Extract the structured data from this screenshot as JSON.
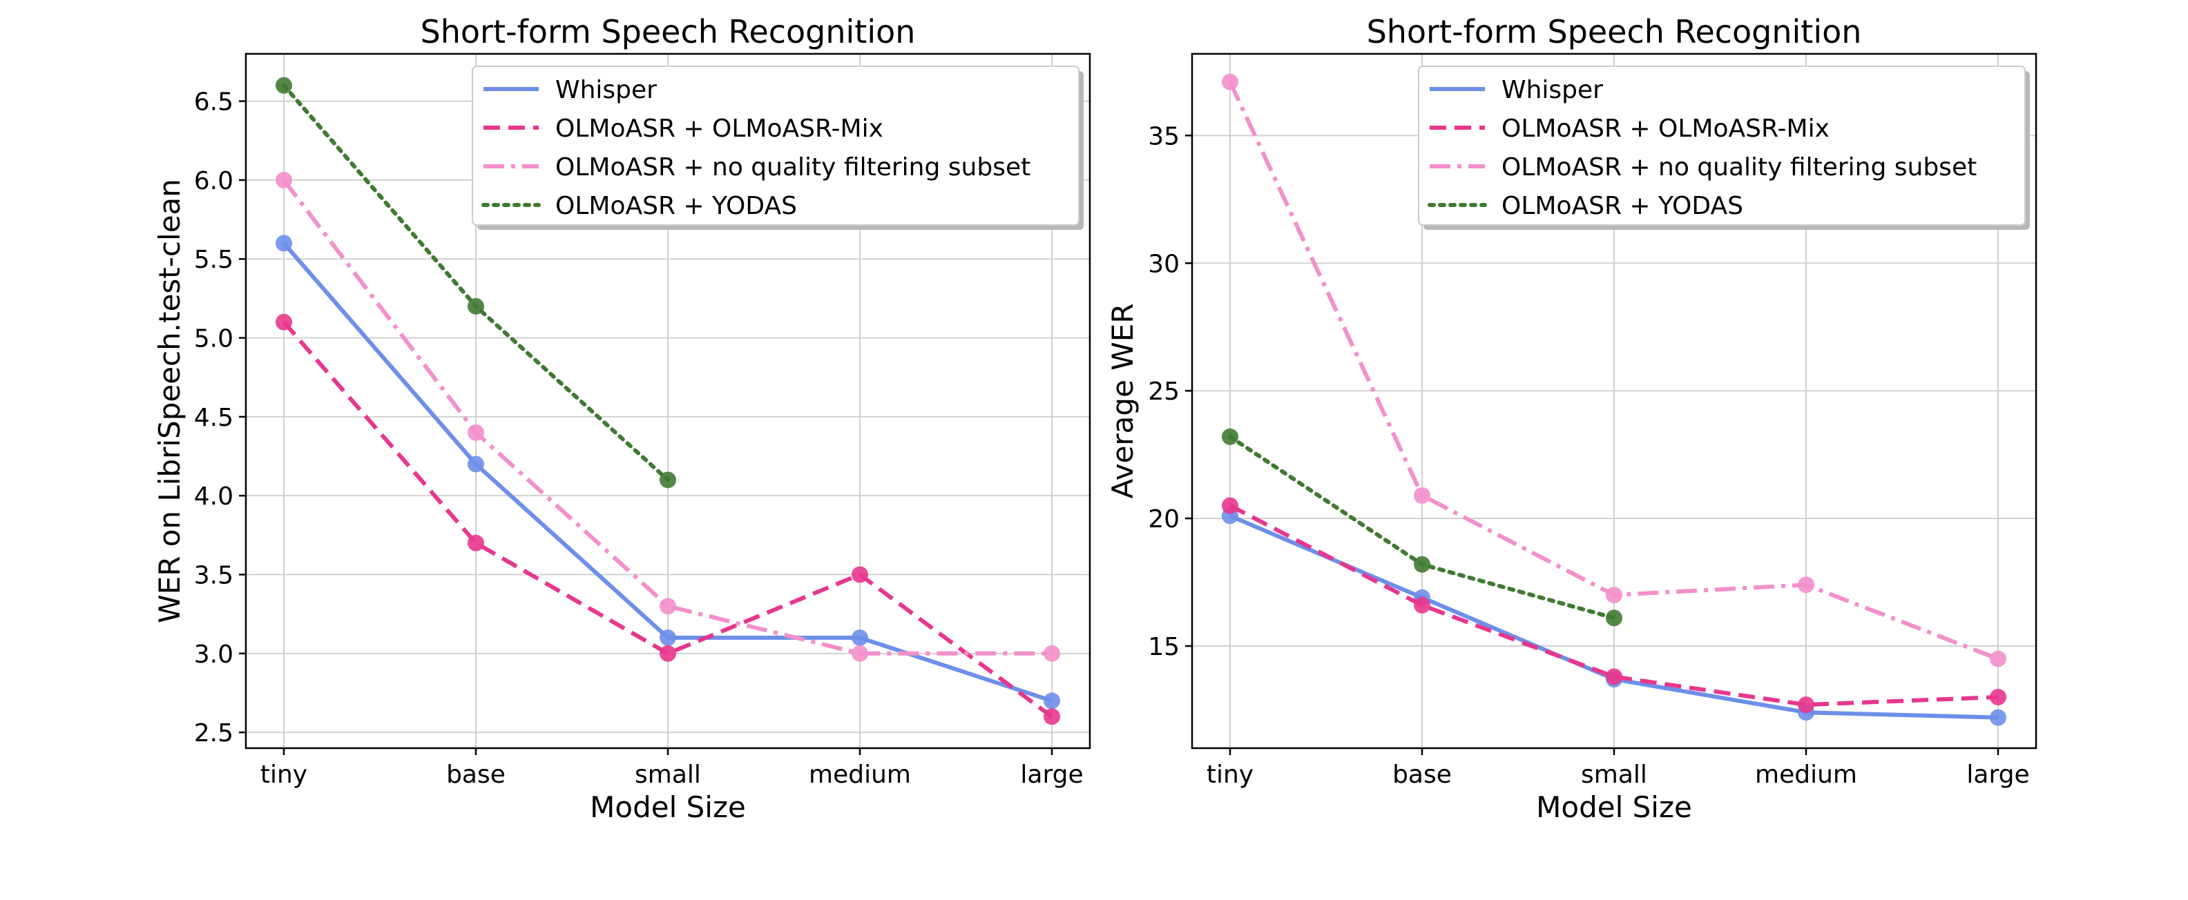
{
  "chart_data": [
    {
      "type": "line",
      "title": "Short-form Speech Recognition",
      "xlabel": "Model Size",
      "ylabel": "WER on LibriSpeech.test-clean",
      "categories": [
        "tiny",
        "base",
        "small",
        "medium",
        "large"
      ],
      "ylim": [
        2.4,
        6.8
      ],
      "yticks": [
        2.5,
        3.0,
        3.5,
        4.0,
        4.5,
        5.0,
        5.5,
        6.0,
        6.5
      ],
      "ytick_labels": [
        "2.5",
        "3.0",
        "3.5",
        "4.0",
        "4.5",
        "5.0",
        "5.5",
        "6.0",
        "6.5"
      ],
      "grid": true,
      "legend_position": "top-right",
      "series": [
        {
          "name": "Whisper",
          "color": "#6d8fea",
          "style": "solid",
          "values": [
            5.6,
            4.2,
            3.1,
            3.1,
            2.7
          ]
        },
        {
          "name": "OLMoASR + OLMoASR-Mix",
          "color": "#e8368c",
          "style": "dashed",
          "values": [
            5.1,
            3.7,
            3.0,
            3.5,
            2.6
          ]
        },
        {
          "name": "OLMoASR + no quality filtering subset",
          "color": "#f38fcb",
          "style": "dashdot",
          "values": [
            6.0,
            4.4,
            3.3,
            3.0,
            3.0
          ]
        },
        {
          "name": "OLMoASR + YODAS",
          "color": "#3f7a32",
          "style": "dotted",
          "values": [
            6.6,
            5.2,
            4.1,
            null,
            null
          ]
        }
      ]
    },
    {
      "type": "line",
      "title": "Short-form Speech Recognition",
      "xlabel": "Model Size",
      "ylabel": "Average WER",
      "categories": [
        "tiny",
        "base",
        "small",
        "medium",
        "large"
      ],
      "ylim": [
        11.0,
        38.2
      ],
      "yticks": [
        15,
        20,
        25,
        30,
        35
      ],
      "ytick_labels": [
        "15",
        "20",
        "25",
        "30",
        "35"
      ],
      "grid": true,
      "legend_position": "top-right",
      "series": [
        {
          "name": "Whisper",
          "color": "#6d8fea",
          "style": "solid",
          "values": [
            20.1,
            16.9,
            13.7,
            12.4,
            12.2
          ]
        },
        {
          "name": "OLMoASR + OLMoASR-Mix",
          "color": "#e8368c",
          "style": "dashed",
          "values": [
            20.5,
            16.6,
            13.8,
            12.7,
            13.0
          ]
        },
        {
          "name": "OLMoASR + no quality filtering subset",
          "color": "#f38fcb",
          "style": "dashdot",
          "values": [
            37.1,
            20.9,
            17.0,
            17.4,
            14.5
          ]
        },
        {
          "name": "OLMoASR + YODAS",
          "color": "#3f7a32",
          "style": "dotted",
          "values": [
            23.2,
            18.2,
            16.1,
            null,
            null
          ]
        }
      ]
    }
  ]
}
